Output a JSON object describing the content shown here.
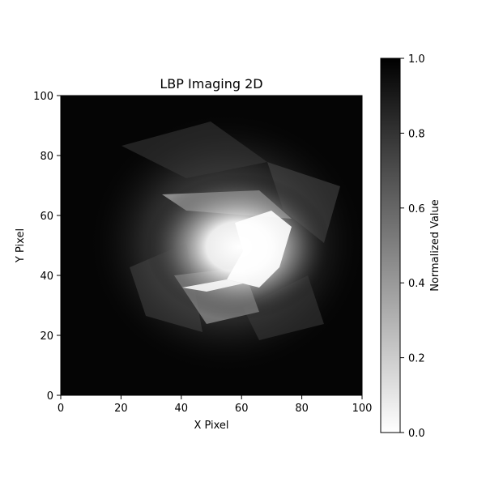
{
  "chart_data": {
    "type": "heatmap",
    "title": "LBP Imaging 2D",
    "xlabel": "X Pixel",
    "ylabel": "Y Pixel",
    "xlim": [
      0,
      100
    ],
    "ylim": [
      0,
      100
    ],
    "xticks": [
      0,
      20,
      40,
      60,
      80,
      100
    ],
    "yticks": [
      0,
      20,
      40,
      60,
      80,
      100
    ],
    "colormap": "gray_r",
    "grid": false,
    "colorbar": {
      "label": "Normalized Value",
      "range": [
        0.0,
        1.0
      ],
      "ticks": [
        "0.0",
        "0.2",
        "0.4",
        "0.6",
        "0.8",
        "1.0"
      ],
      "low_color": "#ffffff",
      "high_color": "#000000"
    },
    "description": "",
    "bright_region": {
      "center": [
        62,
        45
      ],
      "peak_value": 0.0,
      "background_value": 0.95
    }
  }
}
